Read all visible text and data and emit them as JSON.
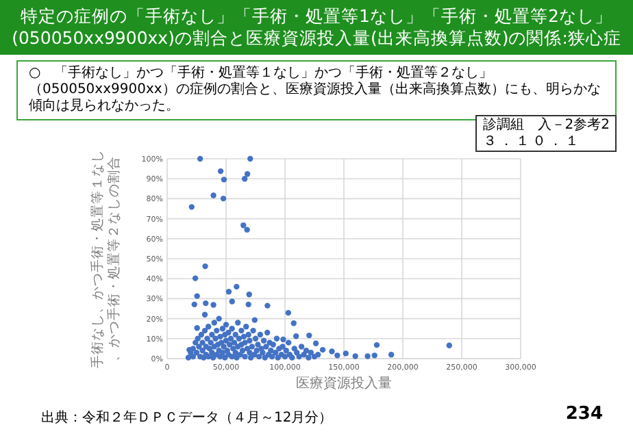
{
  "chart_data": {
    "type": "scatter",
    "title": "特定の症例の「手術なし」「手術・処置等1なし」「手術・処置等2なし」(050050xx9900xx)の割合と医療資源投入量(出来高換算点数)の関係:狭心症",
    "xlabel": "医療資源投入量",
    "ylabel": "手術なし、かつ手術・処置等１なし、かつ手術・処置等２なしの割合",
    "annotations": [
      "○　「手術なし」かつ「手術・処置等１なし」かつ「手術・処置等２なし」（050050xx9900xx）の症例の割合と、医療資源投入量（出来高換算点数）にも、明らかな傾向は見られなかった。",
      "診調組　入－2参考2",
      "３．１０．１",
      "出典：令和２年ＤＰＣデータ（４月～12月分）",
      "234"
    ],
    "xlim": [
      0,
      300000
    ],
    "xticks": [
      {
        "value": 0,
        "label": "0"
      },
      {
        "value": 50000,
        "label": "50,000"
      },
      {
        "value": 100000,
        "label": "100,000"
      },
      {
        "value": 150000,
        "label": "150,000"
      },
      {
        "value": 200000,
        "label": "200,000"
      },
      {
        "value": 250000,
        "label": "250,000"
      },
      {
        "value": 300000,
        "label": "300,000"
      }
    ],
    "ylim": [
      0,
      100
    ],
    "yticks": [
      {
        "value": 0,
        "label": "0%"
      },
      {
        "value": 10,
        "label": "10%"
      },
      {
        "value": 20,
        "label": "20%"
      },
      {
        "value": 30,
        "label": "30%"
      },
      {
        "value": 40,
        "label": "40%"
      },
      {
        "value": 50,
        "label": "50%"
      },
      {
        "value": 60,
        "label": "60%"
      },
      {
        "value": 70,
        "label": "70%"
      },
      {
        "value": 80,
        "label": "80%"
      },
      {
        "value": 90,
        "label": "90%"
      },
      {
        "value": 100,
        "label": "100%"
      }
    ],
    "grid": true,
    "marker": "circle",
    "color": "#4472c4",
    "x": [
      28000,
      70500,
      45400,
      68100,
      48200,
      65800,
      39300,
      47700,
      20800,
      64700,
      67800,
      32300,
      23900,
      58900,
      25400,
      52300,
      69600,
      23100,
      32700,
      39300,
      55100,
      69000,
      85100,
      32000,
      102800,
      107400,
      74300,
      25400,
      120500,
      109400,
      98500,
      177900,
      239400,
      190200,
      176000,
      170100,
      151600,
      159700,
      144400,
      139800,
      132000,
      126200,
      18800,
      22000,
      22000,
      24000,
      25000,
      26000,
      27000,
      28000,
      29000,
      30000,
      30000,
      31000,
      32000,
      33000,
      33000,
      34000,
      35000,
      35000,
      36000,
      37000,
      38000,
      38000,
      39000,
      40000,
      40000,
      41000,
      42000,
      42000,
      43000,
      44000,
      44000,
      45000,
      45000,
      46000,
      47000,
      47000,
      48000,
      49000,
      49000,
      50000,
      50000,
      51000,
      52000,
      52000,
      53000,
      54000,
      55000,
      55000,
      56000,
      57000,
      58000,
      58000,
      59000,
      60000,
      60000,
      61000,
      62000,
      63000,
      63000,
      64000,
      65000,
      66000,
      66000,
      67000,
      68000,
      69000,
      70000,
      70000,
      71000,
      72000,
      73000,
      74000,
      75000,
      76000,
      77000,
      78000,
      79000,
      80000,
      81000,
      82000,
      83000,
      84000,
      85000,
      86000,
      87000,
      88000,
      89000,
      90000,
      92000,
      93000,
      94000,
      95000,
      97000,
      98000,
      100000,
      101000,
      103000,
      104000,
      106000,
      108000,
      110000,
      112000,
      114000,
      116000,
      118000,
      120000,
      122000,
      125000,
      128000,
      18000,
      20000
    ],
    "values": [
      100,
      100,
      93.8,
      92.4,
      89.6,
      90,
      81.7,
      80.1,
      75.9,
      66.7,
      64.5,
      46.2,
      40.2,
      36,
      31.3,
      33.5,
      32.1,
      27.1,
      27.7,
      26.9,
      28.6,
      27.1,
      26.5,
      22,
      22.9,
      17.7,
      19.3,
      15.3,
      11.6,
      11.2,
      9.6,
      6.8,
      6.6,
      2,
      1.6,
      1.2,
      2.6,
      1.2,
      1.6,
      3.6,
      4.4,
      7.6,
      4.4,
      1,
      5,
      8,
      3,
      10,
      6,
      1,
      12,
      4,
      8,
      0.5,
      14,
      6,
      2,
      10,
      1,
      16,
      5,
      8,
      3,
      12,
      0.5,
      18,
      6,
      10,
      2,
      14,
      7,
      4,
      20,
      11,
      1,
      8,
      15,
      3,
      6,
      12,
      0.5,
      9,
      17,
      4,
      2,
      13,
      7,
      10,
      1,
      15,
      5,
      8,
      12,
      3,
      0.5,
      6,
      18,
      10,
      2,
      14,
      7,
      4,
      11,
      1,
      8,
      16,
      5,
      12,
      3,
      9,
      0.5,
      6,
      14,
      2,
      10,
      4,
      7,
      1,
      12,
      5,
      3,
      9,
      0.5,
      6,
      13,
      2,
      8,
      4,
      1,
      7,
      3,
      10,
      0.5,
      5,
      2,
      6,
      1,
      4,
      8,
      2,
      0.5,
      5,
      3,
      1,
      6,
      2,
      4,
      0.5,
      3,
      1,
      2,
      0.5,
      3
    ]
  }
}
